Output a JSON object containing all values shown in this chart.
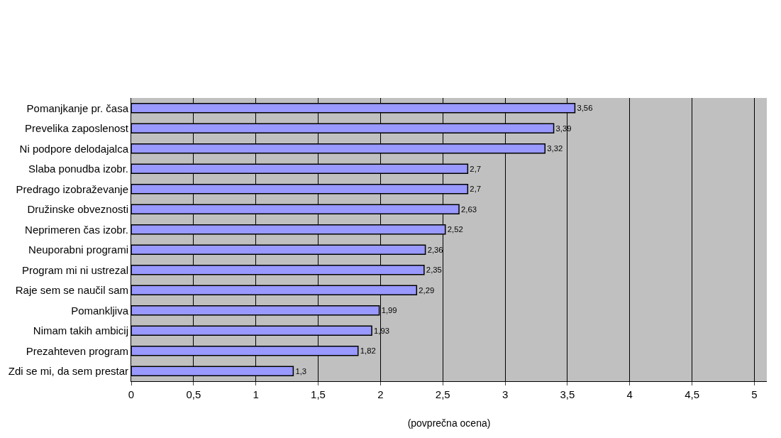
{
  "chart_data": {
    "type": "bar",
    "orientation": "horizontal",
    "categories": [
      "Pomanjkanje pr. časa",
      "Prevelika zaposlenost",
      "Ni podpore delodajalca",
      "Slaba ponudba izobr.",
      "Predrago izobraževanje",
      "Družinske obveznosti",
      "Neprimeren čas izobr.",
      "Neuporabni programi",
      "Program mi ni ustrezal",
      "Raje sem se naučil sam",
      "Pomankljiva",
      "Nimam takih ambicij",
      "Prezahteven program",
      "Zdi se mi, da sem prestar"
    ],
    "values": [
      3.56,
      3.39,
      3.32,
      2.7,
      2.7,
      2.63,
      2.52,
      2.36,
      2.35,
      2.29,
      1.99,
      1.93,
      1.82,
      1.3
    ],
    "value_labels": [
      "3,56",
      "3,39",
      "3,32",
      "2,7",
      "2,7",
      "2,63",
      "2,52",
      "2,36",
      "2,35",
      "2,29",
      "1,99",
      "1,93",
      "1,82",
      "1,3"
    ],
    "color": "#9999ff",
    "xlim": [
      0,
      5.1
    ],
    "xticks": [
      0,
      {
        "value": 0.5,
        "label": "0,5"
      },
      1,
      {
        "value": 1.5,
        "label": "1,5"
      },
      2,
      {
        "value": 2.5,
        "label": "2,5"
      },
      3,
      {
        "value": 3.5,
        "label": "3,5"
      },
      4,
      {
        "value": 4.5,
        "label": "4,5"
      },
      5
    ],
    "xlabel": "(povprečna ocena)",
    "grid": "x"
  }
}
